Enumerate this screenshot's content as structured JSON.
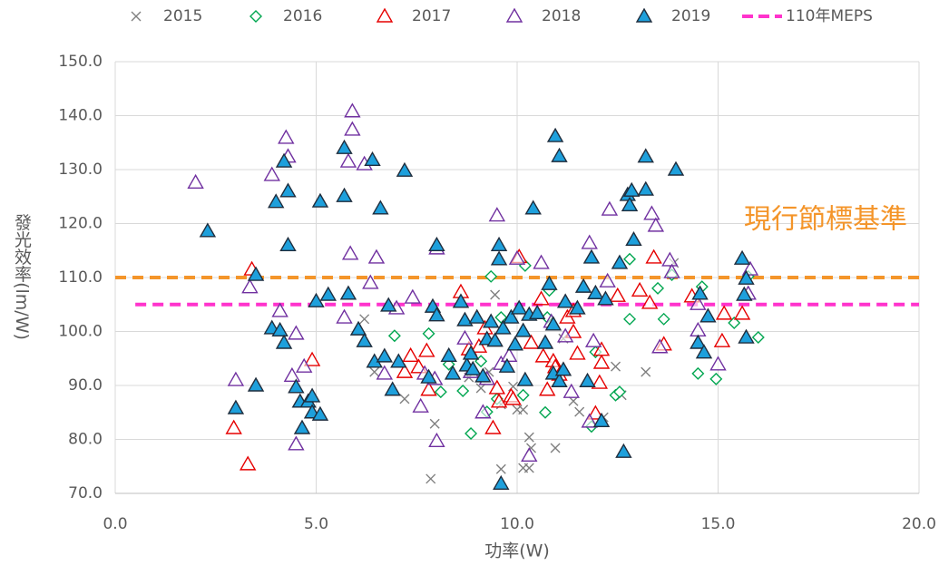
{
  "chart_data": {
    "type": "scatter",
    "xlabel": "功率(W)",
    "ylabel": "發光效率(lm/W)",
    "annotation": "現行節標基準",
    "annotation_color": "#f4952a",
    "xlim": [
      0,
      20
    ],
    "ylim": [
      70,
      150
    ],
    "xticks": [
      {
        "value": 0,
        "label": "0.0"
      },
      {
        "value": 5,
        "label": "5.0"
      },
      {
        "value": 10,
        "label": "10.0"
      },
      {
        "value": 15,
        "label": "15.0"
      },
      {
        "value": 20,
        "label": "20.0"
      }
    ],
    "yticks": [
      {
        "value": 70,
        "label": "70.0"
      },
      {
        "value": 80,
        "label": "80.0"
      },
      {
        "value": 90,
        "label": "90.0"
      },
      {
        "value": 100,
        "label": "100.0"
      },
      {
        "value": 110,
        "label": "110.0"
      },
      {
        "value": 120,
        "label": "120.0"
      },
      {
        "value": 130,
        "label": "130.0"
      },
      {
        "value": 140,
        "label": "140.0"
      },
      {
        "value": 150,
        "label": "150.0"
      }
    ],
    "grid": true,
    "legend": "top",
    "hlines": [
      {
        "value": 110,
        "x": [
          0,
          20
        ],
        "color": "#f4952a"
      }
    ],
    "series": [
      {
        "name": "2015",
        "marker": "x",
        "color": "#7f7f7f",
        "x": [
          6.2,
          6.45,
          7.2,
          7.85,
          7.95,
          8.8,
          9.1,
          9.3,
          9.45,
          9.6,
          9.6,
          9.9,
          10.0,
          10.15,
          10.15,
          10.3,
          10.3,
          10.35,
          10.95,
          11.15,
          11.4,
          11.55,
          12.15,
          12.45,
          12.6,
          13.2,
          13.9
        ],
        "values": [
          102.3,
          92.5,
          87.5,
          72.7,
          82.9,
          91.5,
          89.5,
          92.5,
          106.8,
          86.5,
          74.5,
          89.8,
          85.5,
          85.5,
          74.7,
          80.4,
          74.7,
          78.4,
          78.4,
          98.7,
          87.1,
          85.1,
          84.1,
          93.5,
          88.2,
          92.5,
          112.7
        ]
      },
      {
        "name": "2016",
        "marker": "diamond",
        "color": "#00a650",
        "x": [
          6.95,
          7.8,
          8.1,
          8.3,
          8.65,
          8.85,
          9.1,
          9.25,
          9.35,
          9.5,
          9.6,
          10.15,
          10.2,
          10.7,
          10.75,
          10.8,
          11.85,
          11.95,
          12.45,
          12.55,
          12.8,
          12.8,
          13.5,
          13.65,
          13.85,
          14.5,
          14.6,
          14.95,
          15.4,
          15.75,
          16.0
        ],
        "values": [
          99.2,
          99.6,
          88.8,
          93.9,
          89,
          81.1,
          94.5,
          85.1,
          110.2,
          87.5,
          102.6,
          88.2,
          112.2,
          85,
          102.6,
          107.6,
          82.4,
          96.2,
          88.2,
          88.8,
          113.4,
          102.3,
          108,
          102.3,
          110.5,
          92.2,
          108.3,
          91.2,
          101.6,
          110.2,
          98.9
        ]
      },
      {
        "name": "2017",
        "marker": "triangle",
        "color": "#e60000",
        "x": [
          2.95,
          3.3,
          3.4,
          4.9,
          7.2,
          7.35,
          7.55,
          7.75,
          7.8,
          8.6,
          8.8,
          9.05,
          9.2,
          9.4,
          9.5,
          9.55,
          9.85,
          9.9,
          10.05,
          10.35,
          10.6,
          10.65,
          10.75,
          10.9,
          10.95,
          11.05,
          11.25,
          11.4,
          11.4,
          11.5,
          11.95,
          12.05,
          12.1,
          12.1,
          12.5,
          13.05,
          13.3,
          13.4,
          13.65,
          14.35,
          15.1,
          15.15,
          15.6
        ],
        "values": [
          82.1,
          75.4,
          111.5,
          94.7,
          92.5,
          95.5,
          93.4,
          96.4,
          89.2,
          107.3,
          96.7,
          97.2,
          100.6,
          82.1,
          89.5,
          87,
          88,
          87.5,
          113.8,
          97.9,
          106,
          95.4,
          89.2,
          94.5,
          93.4,
          92,
          102.6,
          103.8,
          99.9,
          95.9,
          84.8,
          90.5,
          96.6,
          94.2,
          106.6,
          107.6,
          105.3,
          113.7,
          97.6,
          106.5,
          98.2,
          103.3,
          103.3
        ]
      },
      {
        "name": "2018",
        "marker": "triangle",
        "color": "#7030a0",
        "x": [
          2.0,
          3.0,
          3.35,
          3.9,
          4.1,
          4.25,
          4.3,
          4.4,
          4.5,
          4.5,
          4.7,
          5.7,
          5.85,
          5.8,
          5.9,
          5.9,
          6.2,
          6.35,
          6.5,
          6.7,
          7.0,
          7.4,
          7.6,
          7.7,
          7.95,
          8.0,
          8.0,
          8.7,
          8.85,
          9.15,
          9.25,
          9.5,
          9.6,
          9.8,
          10.0,
          10.3,
          10.6,
          10.85,
          11.2,
          11.35,
          11.8,
          11.8,
          11.9,
          12.25,
          12.3,
          13.35,
          13.45,
          13.55,
          13.8,
          13.85,
          14.5,
          14.5,
          15.0,
          15.75,
          15.8
        ],
        "values": [
          127.6,
          91,
          108.2,
          129,
          103.8,
          135.9,
          132.4,
          91.8,
          99.6,
          79.1,
          93.5,
          102.6,
          114.4,
          131.5,
          140.8,
          137.4,
          131,
          109,
          113.7,
          92.2,
          104.3,
          106.3,
          86.1,
          92.2,
          91.2,
          115.4,
          79.7,
          98.7,
          92.5,
          85,
          91.2,
          121.5,
          94,
          95.5,
          113.5,
          77,
          112.7,
          101.8,
          99.1,
          88.8,
          83.3,
          116.4,
          98.2,
          109.3,
          122.6,
          121.8,
          119.6,
          97.1,
          113.2,
          111,
          105.1,
          100.2,
          93.9,
          107,
          111.5
        ]
      },
      {
        "name": "2019",
        "marker": "filled-triangle",
        "color": "#1ea0dc",
        "edge_color": "#1f2d3d",
        "x": [
          2.3,
          3.0,
          3.5,
          3.5,
          3.9,
          4.0,
          4.1,
          4.2,
          4.2,
          4.3,
          4.3,
          4.5,
          4.6,
          4.65,
          4.8,
          4.9,
          4.9,
          5.0,
          5.1,
          5.1,
          5.3,
          5.7,
          5.7,
          5.8,
          6.05,
          6.2,
          6.4,
          6.45,
          6.6,
          6.7,
          6.8,
          6.9,
          7.05,
          7.2,
          7.8,
          7.9,
          8.0,
          8.0,
          8.3,
          8.4,
          8.6,
          8.7,
          8.75,
          8.85,
          8.9,
          9.0,
          9.15,
          9.25,
          9.35,
          9.45,
          9.55,
          9.55,
          9.6,
          9.65,
          9.75,
          9.85,
          9.95,
          10.05,
          10.15,
          10.2,
          10.3,
          10.4,
          10.5,
          10.7,
          10.8,
          10.9,
          10.9,
          10.95,
          11.05,
          11.05,
          11.15,
          11.2,
          11.5,
          11.65,
          11.75,
          11.85,
          11.95,
          12.1,
          12.2,
          12.55,
          12.65,
          12.75,
          12.8,
          12.85,
          12.9,
          13.2,
          13.2,
          13.95,
          14.5,
          14.55,
          14.65,
          14.75,
          15.6,
          15.65,
          15.7,
          15.7
        ],
        "values": [
          118.6,
          85.8,
          90,
          110.5,
          100.6,
          124,
          100.2,
          131.5,
          97.9,
          116,
          126,
          89.7,
          87,
          82.1,
          87,
          88,
          85,
          105.6,
          84.6,
          124.1,
          106.8,
          125.1,
          134,
          107,
          100.4,
          98.2,
          131.8,
          94.4,
          122.8,
          95.4,
          104.8,
          89.2,
          94.4,
          129.8,
          91.5,
          104.6,
          116,
          103,
          95.5,
          92.2,
          105.5,
          102.1,
          93.7,
          95.9,
          93,
          102.6,
          91.7,
          98.6,
          101.8,
          98.3,
          116,
          113.4,
          71.8,
          100.6,
          93.5,
          102.6,
          97.6,
          104.3,
          100.1,
          91,
          103.1,
          122.8,
          103.4,
          97.9,
          108.8,
          101.3,
          92.2,
          136.2,
          90.8,
          132.5,
          92.9,
          105.5,
          104.3,
          108.3,
          90.8,
          113.7,
          107.1,
          83.4,
          106,
          112.7,
          77.7,
          125.3,
          123.4,
          126.1,
          117,
          126.3,
          132.4,
          130,
          97.9,
          107,
          96.1,
          102.8,
          113.5,
          106.8,
          109.8,
          98.9
        ]
      },
      {
        "name": "110年MEPS",
        "marker": "dashed-line",
        "color": "#ff33cc",
        "x": [
          0.5,
          20
        ],
        "values": [
          105,
          105
        ]
      }
    ]
  }
}
